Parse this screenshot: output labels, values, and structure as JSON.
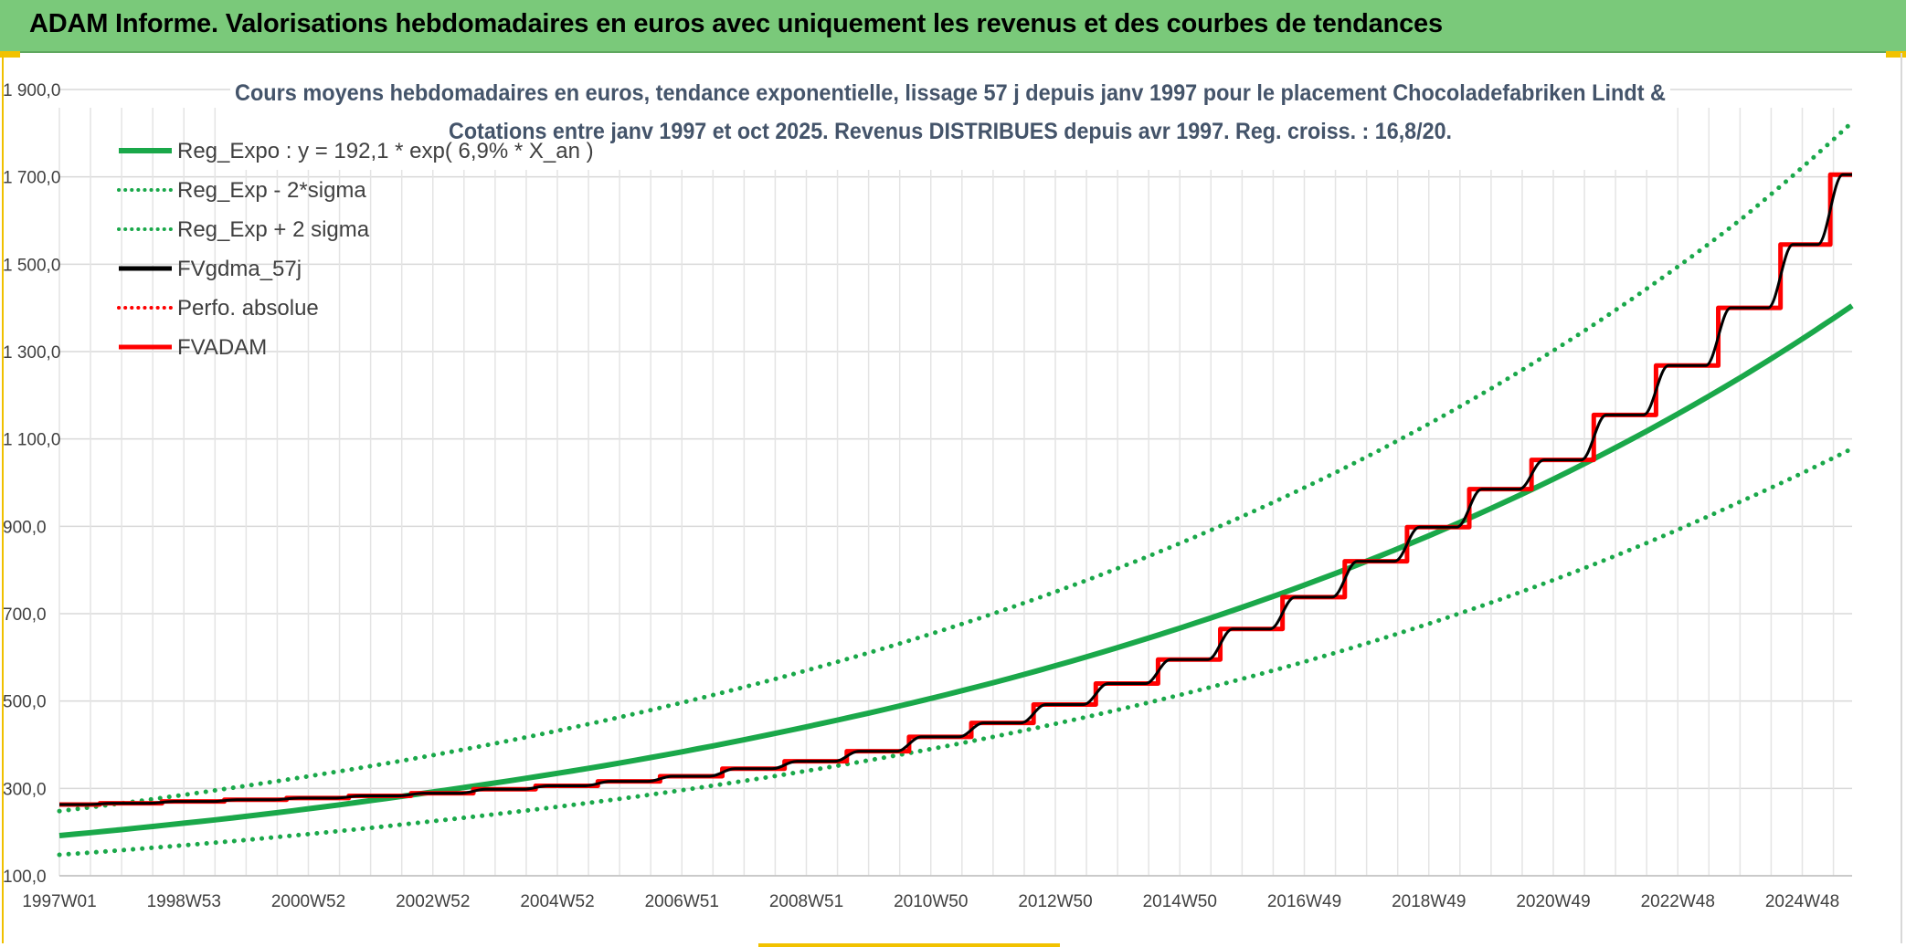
{
  "page_title": "ADAM Informe. Valorisations hebdomadaires en euros avec uniquement les revenus et des courbes de tendances",
  "colors": {
    "banner": "#7ac97a",
    "trend": "#1aa84a",
    "smoothed": "#000000",
    "adam": "#ff0000",
    "grid": "#d9d9d9",
    "title_text": "#44546a"
  },
  "chart_data": {
    "type": "line",
    "title_lines": [
      "Cours moyens hebdomadaires en euros, tendance exponentielle, lissage 57 j depuis janv 1997 pour le placement Chocoladefabriken Lindt &",
      "Cotations entre janv 1997 et oct 2025. Revenus DISTRIBUES depuis avr 1997. Reg. croiss. : 16,8/20."
    ],
    "xlabel": "",
    "ylabel": "",
    "x_range": [
      1997.0,
      2025.8
    ],
    "ylim": [
      100,
      2000
    ],
    "y_ticks": [
      100,
      300,
      500,
      700,
      900,
      1100,
      1300,
      1500,
      1700,
      1900
    ],
    "y_tick_labels": [
      "100,0",
      "300,0",
      "500,0",
      "700,0",
      "900,0",
      "1 100,0",
      "1 300,0",
      "1 500,0",
      "1 700,0",
      "1 900,0"
    ],
    "x_tick_labels": [
      "1997W01",
      "1998W53",
      "2000W52",
      "2002W52",
      "2004W52",
      "2006W51",
      "2008W51",
      "2010W50",
      "2012W50",
      "2014W50",
      "2016W49",
      "2018W49",
      "2020W49",
      "2022W48",
      "2024W48"
    ],
    "x_tick_years": [
      1997.0,
      1999.0,
      2001.0,
      2003.0,
      2005.0,
      2007.0,
      2009.0,
      2011.0,
      2013.0,
      2015.0,
      2017.0,
      2019.0,
      2021.0,
      2023.0,
      2025.0
    ],
    "grid": true,
    "legend_position": "top-left",
    "legend": [
      {
        "label": "Reg_Expo : y = 192,1 * exp( 6,9% *  X_an )",
        "color": "#1aa84a",
        "style": "solid"
      },
      {
        "label": "Reg_Exp - 2*sigma",
        "color": "#1aa84a",
        "style": "dotted"
      },
      {
        "label": "Reg_Exp + 2 sigma",
        "color": "#1aa84a",
        "style": "dotted"
      },
      {
        "label": "FVgdma_57j",
        "color": "#000000",
        "style": "solid"
      },
      {
        "label": "Perfo. absolue",
        "color": "#ff0000",
        "style": "dotted"
      },
      {
        "label": "FVADAM",
        "color": "#ff0000",
        "style": "solid"
      }
    ],
    "series": [
      {
        "name": "Reg_Expo : y = 192,1 * exp( 6,9% *  X_an )",
        "x": [
          1997,
          2000,
          2003,
          2006,
          2009,
          2012,
          2015,
          2018,
          2021,
          2024,
          2025.8
        ],
        "y": [
          192,
          236,
          292,
          358,
          441,
          542,
          667,
          820,
          1008,
          1240,
          1405
        ]
      },
      {
        "name": "Reg_Exp - 2*sigma",
        "x": [
          1997,
          2000,
          2003,
          2006,
          2009,
          2012,
          2015,
          2018,
          2021,
          2024,
          2025.8
        ],
        "y": [
          148,
          182,
          225,
          276,
          340,
          418,
          514,
          632,
          777,
          956,
          1078
        ]
      },
      {
        "name": "Reg_Exp + 2 sigma",
        "x": [
          1997,
          2000,
          2003,
          2006,
          2009,
          2012,
          2015,
          2018,
          2021,
          2024,
          2025.8
        ],
        "y": [
          248,
          306,
          376,
          463,
          570,
          700,
          861,
          1059,
          1302,
          1601,
          1825
        ]
      },
      {
        "name": "FVADAM",
        "x": [
          1997.0,
          1998.0,
          1999.0,
          2000.0,
          2001.0,
          2002.0,
          2003.0,
          2004.0,
          2005.0,
          2006.0,
          2007.0,
          2008.0,
          2009.0,
          2010.0,
          2011.0,
          2012.0,
          2013.0,
          2014.0,
          2015.0,
          2016.0,
          2017.0,
          2018.0,
          2019.0,
          2020.0,
          2021.0,
          2022.0,
          2023.0,
          2024.0,
          2025.0,
          2025.8
        ],
        "y": [
          263,
          266,
          270,
          274,
          278,
          283,
          289,
          298,
          306,
          316,
          328,
          345,
          362,
          385,
          418,
          450,
          492,
          540,
          595,
          665,
          738,
          820,
          898,
          985,
          1052,
          1155,
          1268,
          1400,
          1545,
          1705
        ]
      }
    ]
  }
}
